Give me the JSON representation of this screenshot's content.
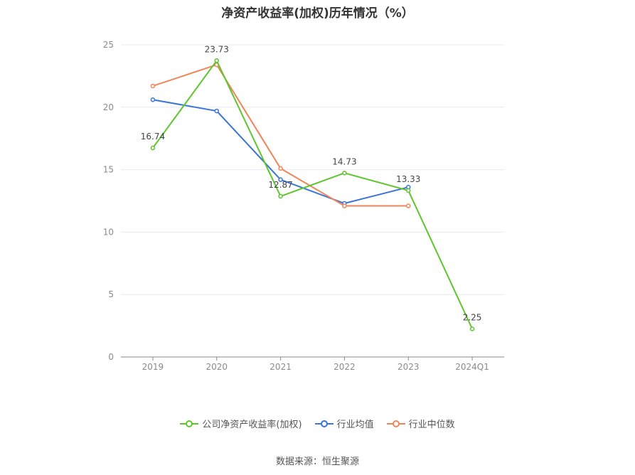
{
  "title": "净资产收益率(加权)历年情况（%）",
  "source": "数据来源：恒生聚源",
  "colors": {
    "company": "#5ec52e",
    "industry_avg": "#3b74d8",
    "industry_median": "#f08559",
    "grid": "#e6e9ef",
    "axis": "#888888",
    "tick_text": "#8a8a8a"
  },
  "chart_data": {
    "type": "line",
    "title": "净资产收益率(加权)历年情况（%）",
    "categories": [
      "2019",
      "2020",
      "2021",
      "2022",
      "2023",
      "2024Q1"
    ],
    "ylim": [
      0,
      25
    ],
    "yticks": [
      0,
      5,
      10,
      15,
      20,
      25
    ],
    "grid": true,
    "legend_position": "bottom",
    "series": [
      {
        "name": "公司净资产收益率(加权)",
        "color": "#5ec52e",
        "values": [
          16.74,
          23.73,
          12.87,
          14.73,
          13.33,
          2.25
        ],
        "labels": [
          "16.74",
          "23.73",
          "12.87",
          "14.73",
          "13.33",
          "2.25"
        ]
      },
      {
        "name": "行业均值",
        "color": "#3b74d8",
        "values": [
          20.6,
          19.7,
          14.2,
          12.3,
          13.6,
          null
        ]
      },
      {
        "name": "行业中位数",
        "color": "#f08559",
        "values": [
          21.7,
          23.4,
          15.1,
          12.1,
          12.1,
          null
        ]
      }
    ]
  }
}
